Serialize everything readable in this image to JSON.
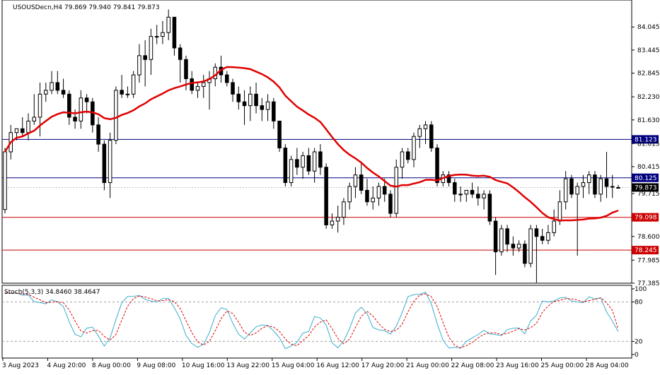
{
  "header": {
    "title": "USOUSDecn,H4  79.869 79.940 79.841 79.873"
  },
  "indicator": {
    "label": "Stoch(5,3,3) 34.8460 38.4647"
  },
  "colors": {
    "background": "#ffffff",
    "candle": "#000000",
    "ma_line": "#e00000",
    "stoch_main": "#3aaecc",
    "stoch_signal": "#e00000",
    "level_blue": "#000080",
    "level_red": "#cc0000",
    "current_price_tag": "#000000"
  },
  "price_scale": {
    "ticks": [
      "84.045",
      "83.445",
      "82.845",
      "82.230",
      "81.630",
      "81.015",
      "80.415",
      "79.715",
      "78.600",
      "77.985",
      "77.385"
    ]
  },
  "levels": [
    {
      "label": "81.123",
      "style": "blue"
    },
    {
      "label": "80.125",
      "style": "blue"
    },
    {
      "label": "79.873",
      "style": "current"
    },
    {
      "label": "79.098",
      "style": "red"
    },
    {
      "label": "78.245",
      "style": "red"
    }
  ],
  "stoch_scale": {
    "ticks": [
      "100",
      "80",
      "20",
      "0"
    ]
  },
  "time_axis": {
    "labels": [
      "3 Aug 2023",
      "4 Aug 20:00",
      "8 Aug 00:00",
      "9 Aug 08:00",
      "10 Aug 16:00",
      "13 Aug 22:00",
      "15 Aug 04:00",
      "16 Aug 12:00",
      "17 Aug 20:00",
      "21 Aug 00:00",
      "22 Aug 08:00",
      "23 Aug 16:00",
      "25 Aug 00:00",
      "28 Aug 04:00"
    ]
  },
  "chart_data": {
    "type": "candlestick",
    "symbol": "USOUSDecn",
    "timeframe": "H4",
    "last_bar": {
      "open": 79.869,
      "high": 79.94,
      "low": 79.841,
      "close": 79.873
    },
    "candles": [
      [
        79.3,
        80.9,
        79.2,
        80.8
      ],
      [
        80.8,
        81.5,
        80.6,
        81.3
      ],
      [
        81.3,
        81.4,
        81.1,
        81.4
      ],
      [
        81.4,
        81.7,
        81.2,
        81.3
      ],
      [
        81.3,
        81.8,
        81.1,
        81.6
      ],
      [
        81.6,
        82.3,
        81.5,
        81.7
      ],
      [
        81.7,
        82.6,
        81.2,
        82.3
      ],
      [
        82.3,
        82.6,
        82.1,
        82.4
      ],
      [
        82.4,
        82.9,
        82.3,
        82.6
      ],
      [
        82.6,
        82.9,
        82.3,
        82.4
      ],
      [
        82.4,
        82.7,
        82.2,
        82.3
      ],
      [
        82.3,
        82.4,
        81.5,
        81.7
      ],
      [
        81.7,
        81.9,
        81.4,
        81.6
      ],
      [
        81.6,
        82.4,
        81.4,
        82.2
      ],
      [
        82.2,
        82.3,
        81.8,
        82.1
      ],
      [
        82.1,
        82.2,
        81.3,
        81.5
      ],
      [
        81.5,
        81.7,
        80.8,
        81.0
      ],
      [
        81.0,
        81.1,
        79.8,
        80.0
      ],
      [
        80.0,
        81.3,
        79.6,
        81.1
      ],
      [
        81.1,
        82.5,
        81.0,
        82.4
      ],
      [
        82.4,
        82.8,
        82.2,
        82.3
      ],
      [
        82.3,
        82.5,
        82.2,
        82.3
      ],
      [
        82.3,
        82.9,
        82.2,
        82.8
      ],
      [
        82.8,
        83.6,
        82.6,
        83.3
      ],
      [
        83.3,
        83.7,
        82.5,
        83.2
      ],
      [
        83.2,
        84.0,
        82.8,
        83.8
      ],
      [
        83.8,
        84.1,
        83.6,
        83.8
      ],
      [
        83.8,
        84.2,
        83.6,
        83.9
      ],
      [
        83.9,
        84.5,
        83.7,
        84.3
      ],
      [
        84.3,
        84.3,
        83.3,
        83.5
      ],
      [
        83.5,
        83.6,
        82.6,
        83.2
      ],
      [
        83.2,
        83.3,
        82.4,
        82.7
      ],
      [
        82.7,
        82.9,
        82.3,
        82.4
      ],
      [
        82.4,
        82.6,
        82.2,
        82.5
      ],
      [
        82.5,
        82.8,
        82.2,
        82.6
      ],
      [
        82.6,
        82.9,
        81.9,
        82.7
      ],
      [
        82.7,
        83.1,
        82.5,
        83.0
      ],
      [
        83.0,
        83.3,
        82.6,
        82.8
      ],
      [
        82.8,
        82.9,
        82.5,
        82.6
      ],
      [
        82.6,
        82.7,
        82.1,
        82.3
      ],
      [
        82.3,
        82.5,
        81.9,
        82.1
      ],
      [
        82.1,
        82.4,
        81.5,
        82.0
      ],
      [
        82.0,
        82.5,
        81.6,
        82.3
      ],
      [
        82.3,
        82.6,
        81.8,
        82.0
      ],
      [
        82.0,
        82.2,
        81.6,
        81.9
      ],
      [
        81.9,
        82.3,
        81.6,
        82.1
      ],
      [
        82.1,
        82.2,
        81.4,
        81.6
      ],
      [
        81.6,
        81.6,
        80.8,
        80.9
      ],
      [
        80.9,
        81.0,
        79.9,
        80.0
      ],
      [
        80.0,
        80.7,
        79.9,
        80.6
      ],
      [
        80.6,
        80.9,
        80.2,
        80.4
      ],
      [
        80.4,
        80.8,
        80.1,
        80.7
      ],
      [
        80.7,
        80.9,
        80.2,
        80.3
      ],
      [
        80.3,
        80.9,
        80.0,
        80.8
      ],
      [
        80.8,
        81.0,
        80.2,
        80.4
      ],
      [
        80.4,
        80.5,
        78.8,
        78.9
      ],
      [
        78.9,
        79.2,
        78.8,
        79.0
      ],
      [
        79.0,
        79.4,
        78.7,
        79.1
      ],
      [
        79.1,
        79.6,
        78.9,
        79.5
      ],
      [
        79.5,
        80.0,
        79.3,
        79.9
      ],
      [
        79.9,
        80.4,
        79.6,
        80.2
      ],
      [
        80.2,
        80.5,
        79.7,
        79.8
      ],
      [
        79.8,
        80.1,
        79.4,
        79.5
      ],
      [
        79.5,
        79.9,
        79.3,
        79.6
      ],
      [
        79.6,
        80.0,
        79.4,
        79.9
      ],
      [
        79.9,
        80.1,
        79.5,
        79.7
      ],
      [
        79.7,
        79.8,
        79.1,
        79.2
      ],
      [
        79.2,
        80.6,
        79.1,
        80.4
      ],
      [
        80.4,
        80.9,
        80.1,
        80.8
      ],
      [
        80.8,
        80.9,
        80.5,
        80.6
      ],
      [
        80.6,
        81.3,
        80.4,
        81.2
      ],
      [
        81.2,
        81.5,
        80.9,
        81.4
      ],
      [
        81.4,
        81.6,
        81.0,
        81.5
      ],
      [
        81.5,
        81.6,
        80.8,
        80.9
      ],
      [
        80.9,
        81.0,
        79.9,
        80.0
      ],
      [
        80.0,
        80.3,
        79.9,
        80.2
      ],
      [
        80.2,
        80.3,
        79.9,
        80.0
      ],
      [
        80.0,
        80.1,
        79.5,
        79.7
      ],
      [
        79.7,
        79.9,
        79.5,
        79.7
      ],
      [
        79.7,
        79.8,
        79.5,
        79.8
      ],
      [
        79.8,
        80.0,
        79.6,
        79.7
      ],
      [
        79.7,
        79.9,
        79.4,
        79.6
      ],
      [
        79.6,
        79.8,
        79.3,
        79.7
      ],
      [
        79.7,
        79.8,
        78.9,
        79.0
      ],
      [
        79.0,
        79.1,
        77.6,
        78.2
      ],
      [
        78.2,
        78.9,
        78.1,
        78.8
      ],
      [
        78.8,
        78.9,
        78.2,
        78.4
      ],
      [
        78.4,
        78.6,
        78.1,
        78.3
      ],
      [
        78.3,
        78.5,
        78.2,
        78.4
      ],
      [
        78.4,
        78.5,
        77.8,
        77.9
      ],
      [
        77.9,
        78.9,
        77.8,
        78.8
      ],
      [
        78.8,
        78.9,
        77.4,
        78.6
      ],
      [
        78.6,
        78.8,
        78.4,
        78.5
      ],
      [
        78.5,
        78.9,
        78.4,
        78.7
      ],
      [
        78.7,
        79.3,
        78.6,
        79.0
      ],
      [
        79.0,
        79.8,
        78.9,
        79.5
      ],
      [
        79.5,
        80.3,
        79.3,
        80.1
      ],
      [
        80.1,
        80.2,
        79.6,
        79.7
      ],
      [
        79.7,
        80.0,
        78.1,
        79.9
      ],
      [
        79.9,
        80.2,
        79.6,
        80.0
      ],
      [
        80.0,
        80.3,
        79.7,
        80.2
      ],
      [
        80.2,
        80.3,
        79.6,
        79.7
      ],
      [
        79.7,
        80.2,
        79.5,
        80.1
      ],
      [
        80.1,
        80.8,
        79.6,
        79.9
      ],
      [
        79.9,
        80.2,
        79.6,
        79.9
      ],
      [
        79.869,
        79.94,
        79.841,
        79.873
      ]
    ],
    "series": [
      {
        "name": "MA",
        "role": "moving-average",
        "y0": 80.7,
        "y_last": 79.35
      },
      {
        "name": "Stoch(5,3,3)",
        "main": 34.846,
        "signal": 38.4647
      }
    ],
    "ylim": [
      77.385,
      84.6
    ],
    "stoch_ylim": [
      0,
      100
    ],
    "stoch_levels": [
      80,
      20
    ]
  }
}
